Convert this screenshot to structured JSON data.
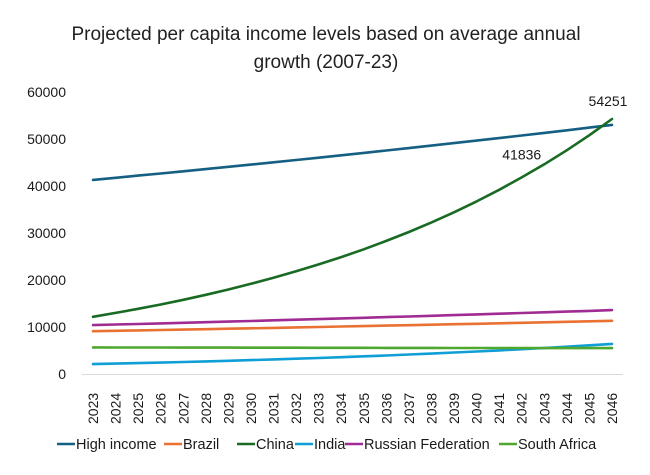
{
  "chart_data": {
    "type": "line",
    "title_lines": [
      "Projected per capita income levels based on average annual",
      "growth (2007-23)"
    ],
    "xlabel": "",
    "ylabel": "",
    "ylim": [
      0,
      60000
    ],
    "yticks": [
      0,
      10000,
      20000,
      30000,
      40000,
      50000,
      60000
    ],
    "grid": false,
    "legend_position": "bottom",
    "x": [
      2023,
      2024,
      2025,
      2026,
      2027,
      2028,
      2029,
      2030,
      2031,
      2032,
      2033,
      2034,
      2035,
      2036,
      2037,
      2038,
      2039,
      2040,
      2041,
      2042,
      2043,
      2044,
      2045,
      2046
    ],
    "series": [
      {
        "name": "High income",
        "color": "#156082",
        "values": [
          41300,
          41750,
          42205,
          42665,
          43130,
          43600,
          44075,
          44555,
          45041,
          45532,
          46028,
          46530,
          47037,
          47550,
          48068,
          48592,
          49122,
          49657,
          50198,
          50745,
          51298,
          51857,
          52422,
          52994
        ]
      },
      {
        "name": "Brazil",
        "color": "#E97132",
        "values": [
          9100,
          9186,
          9274,
          9362,
          9451,
          9541,
          9631,
          9723,
          9815,
          9908,
          10002,
          10097,
          10193,
          10290,
          10388,
          10487,
          10586,
          10687,
          10788,
          10891,
          10994,
          11099,
          11204,
          11310
        ]
      },
      {
        "name": "China",
        "color": "#196B24",
        "values": [
          12176,
          12993,
          13865,
          14795,
          15788,
          16847,
          17977,
          19183,
          20470,
          21843,
          23309,
          24872,
          26541,
          28322,
          30222,
          32249,
          34413,
          36721,
          39185,
          41836,
          44620,
          47614,
          50808,
          54251
        ]
      },
      {
        "name": "India",
        "color": "#0F9ED5",
        "values": [
          2100,
          2204,
          2314,
          2429,
          2550,
          2677,
          2810,
          2949,
          3096,
          3250,
          3411,
          3581,
          3759,
          3946,
          4142,
          4348,
          4564,
          4791,
          5029,
          5279,
          5541,
          5817,
          6106,
          6400
        ]
      },
      {
        "name": "Russian Federation",
        "color": "#A02B93",
        "values": [
          10400,
          10522,
          10645,
          10770,
          10896,
          11023,
          11152,
          11283,
          11415,
          11548,
          11684,
          11820,
          11958,
          12098,
          12240,
          12383,
          12528,
          12675,
          12823,
          12973,
          13125,
          13279,
          13434,
          13600
        ]
      },
      {
        "name": "South Africa",
        "color": "#4EA72E",
        "values": [
          5650,
          5643,
          5636,
          5629,
          5623,
          5616,
          5609,
          5602,
          5596,
          5589,
          5582,
          5576,
          5569,
          5562,
          5556,
          5549,
          5542,
          5536,
          5529,
          5522,
          5516,
          5509,
          5503,
          5500
        ]
      }
    ],
    "annotations": [
      {
        "series": "China",
        "x": 2042,
        "text": "41836"
      },
      {
        "series": "China",
        "x": 2046,
        "text": "54251"
      }
    ]
  }
}
